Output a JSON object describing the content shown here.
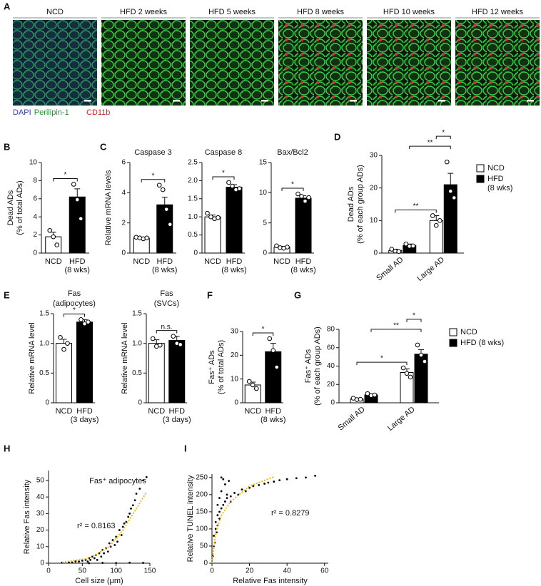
{
  "panel_a": {
    "letter": "A",
    "images": [
      "NCD",
      "HFD 2 weeks",
      "HFD 5 weeks",
      "HFD 8 weeks",
      "HFD 10 weeks",
      "HFD 12 weeks"
    ],
    "stain_labels": [
      {
        "text": "DAPI",
        "color": "#2b3aa8"
      },
      {
        "text": "Perilipin-1",
        "color": "#1e9a2e"
      },
      {
        "text": "CD11b",
        "color": "#d42020"
      }
    ]
  },
  "panel_letters": [
    "B",
    "C",
    "D",
    "E",
    "F",
    "G",
    "H",
    "I"
  ],
  "chart_data": [
    {
      "type": "bar",
      "ylabel": [
        "Dead ADs",
        "(% of total ADs)"
      ],
      "categories": [
        [
          "NCD"
        ],
        [
          "HFD",
          "(8 wks)"
        ]
      ],
      "values": [
        1.8,
        6.2
      ],
      "errors": [
        0.5,
        0.9
      ],
      "points": [
        [
          2.5,
          1.8,
          0.9
        ],
        [
          7.6,
          5.9,
          3.8
        ]
      ],
      "colors": [
        "#ffffff",
        "#000000"
      ],
      "ylim": [
        0,
        10
      ],
      "yticks": [
        0,
        2,
        4,
        6,
        8,
        10
      ],
      "brackets": [
        {
          "bars": [
            0,
            1
          ],
          "label": "*"
        }
      ]
    },
    {
      "type": "bar",
      "title": [
        "Caspase 3"
      ],
      "ylabel": [
        "Relative mRNA levels"
      ],
      "categories": [
        [
          "NCD"
        ],
        [
          "HFD",
          "(8 wks)"
        ]
      ],
      "values": [
        1.0,
        3.2
      ],
      "errors": [
        0.05,
        0.5
      ],
      "points": [
        [
          1.05,
          1.0,
          0.95,
          1.0
        ],
        [
          4.5,
          4.2,
          2.9,
          1.9
        ]
      ],
      "colors": [
        "#ffffff",
        "#000000"
      ],
      "ylim": [
        0,
        6
      ],
      "yticks": [
        0,
        2,
        4,
        6
      ],
      "brackets": [
        {
          "bars": [
            0,
            1
          ],
          "label": "*"
        }
      ]
    },
    {
      "type": "bar",
      "title": [
        "Caspase 8"
      ],
      "categories": [
        [
          "NCD"
        ],
        [
          "HFD",
          "(8 wks)"
        ]
      ],
      "values": [
        1.0,
        1.82
      ],
      "errors": [
        0.05,
        0.07
      ],
      "points": [
        [
          1.1,
          1.0,
          0.95,
          0.98
        ],
        [
          1.95,
          1.85,
          1.75,
          1.78
        ]
      ],
      "colors": [
        "#ffffff",
        "#000000"
      ],
      "ylim": [
        0,
        2.5
      ],
      "yticks": [
        0,
        0.5,
        {
          "value": 1,
          "label": "1.0"
        },
        1.5,
        {
          "value": 2,
          "label": "2.0"
        },
        2.5
      ],
      "brackets": [
        {
          "bars": [
            0,
            1
          ],
          "label": "*"
        }
      ]
    },
    {
      "type": "bar",
      "title": [
        "Bax/Bcl2"
      ],
      "categories": [
        [
          "NCD"
        ],
        [
          "HFD",
          "(8 wks)"
        ]
      ],
      "values": [
        1.0,
        9.1
      ],
      "errors": [
        0.1,
        0.4
      ],
      "points": [
        [
          1.2,
          0.9,
          0.8,
          1.0
        ],
        [
          9.8,
          9.4,
          8.6,
          9.2
        ]
      ],
      "colors": [
        "#ffffff",
        "#000000"
      ],
      "ylim": [
        0,
        15
      ],
      "yticks": [
        0,
        5,
        10,
        15
      ],
      "brackets": [
        {
          "bars": [
            0,
            1
          ],
          "label": "*"
        }
      ]
    },
    {
      "type": "bar",
      "ylabel": [
        "Dead ADs",
        "(% of each group ADs)"
      ],
      "categories": [
        "Small AD",
        "Large AD"
      ],
      "series": [
        {
          "name": [
            "NCD"
          ],
          "color": "#ffffff",
          "values": [
            0.8,
            10.0
          ],
          "errors": [
            0.4,
            1.5
          ],
          "points": [
            [
              1.2,
              0.6,
              0.5
            ],
            [
              11.5,
              8.5,
              10.0
            ]
          ]
        },
        {
          "name": [
            "HFD",
            "(8 wks)"
          ],
          "color": "#000000",
          "values": [
            2.3,
            21.0
          ],
          "errors": [
            0.5,
            3.5
          ],
          "points": [
            [
              2.8,
              2.1,
              2.2
            ],
            [
              28,
              19,
              17
            ]
          ]
        }
      ],
      "ylim": [
        0,
        30
      ],
      "yticks": [
        0,
        10,
        20,
        30
      ],
      "brackets": [
        {
          "bars": [
            [
              0,
              0
            ],
            [
              1,
              0
            ]
          ],
          "label": "**"
        },
        {
          "bars": [
            [
              0,
              1
            ],
            [
              1,
              1
            ]
          ],
          "label": "**"
        },
        {
          "bars": [
            [
              1,
              0
            ],
            [
              1,
              1
            ]
          ],
          "label": "*"
        }
      ]
    },
    {
      "type": "bar",
      "title": [
        "Fas",
        "(adipocytes)"
      ],
      "ylabel": [
        "Relative mRNA level"
      ],
      "categories": [
        [
          "NCD"
        ],
        [
          "HFD",
          "(3 days)"
        ]
      ],
      "values": [
        1.0,
        1.36
      ],
      "errors": [
        0.07,
        0.04
      ],
      "points": [
        [
          1.1,
          0.9,
          1.0
        ],
        [
          1.4,
          1.33,
          1.36
        ]
      ],
      "colors": [
        "#ffffff",
        "#000000"
      ],
      "ylim": [
        0,
        1.5
      ],
      "yticks": [
        0,
        0.5,
        {
          "value": 1,
          "label": "1.0"
        },
        1.5
      ],
      "brackets": [
        {
          "bars": [
            0,
            1
          ],
          "label": "*"
        }
      ]
    },
    {
      "type": "bar",
      "title": [
        "Fas",
        "(SVCs)"
      ],
      "ylabel": [
        "Relative mRNA level"
      ],
      "categories": [
        [
          "NCD"
        ],
        [
          "HFD",
          "(3 days)"
        ]
      ],
      "values": [
        1.0,
        1.05
      ],
      "errors": [
        0.06,
        0.07
      ],
      "points": [
        [
          1.08,
          0.95,
          0.97
        ],
        [
          1.12,
          1.0,
          0.98
        ]
      ],
      "colors": [
        "#ffffff",
        "#000000"
      ],
      "ylim": [
        0,
        1.5
      ],
      "yticks": [
        0,
        0.5,
        {
          "value": 1,
          "label": "1.0"
        },
        1.5
      ],
      "brackets": [
        {
          "bars": [
            0,
            1
          ],
          "label": "n.s."
        }
      ]
    },
    {
      "type": "bar",
      "ylabel": [
        "Fas⁺ ADs",
        "(% of total ADs)"
      ],
      "categories": [
        [
          "NCD"
        ],
        [
          "HFD",
          "(8 wks)"
        ]
      ],
      "values": [
        7.5,
        21.5
      ],
      "errors": [
        1.2,
        3.5
      ],
      "points": [
        [
          9,
          7.5,
          6
        ],
        [
          27,
          22,
          15
        ]
      ],
      "colors": [
        "#ffffff",
        "#000000"
      ],
      "ylim": [
        0,
        30
      ],
      "yticks": [
        0,
        10,
        20,
        30
      ],
      "brackets": [
        {
          "bars": [
            0,
            1
          ],
          "label": "*"
        }
      ]
    },
    {
      "type": "bar",
      "ylabel": [
        "Fas⁺ ADs",
        "(% of each group ADs)"
      ],
      "categories": [
        "Small AD",
        "Large AD"
      ],
      "series": [
        {
          "name": [
            "NCD"
          ],
          "color": "#ffffff",
          "values": [
            4,
            33
          ],
          "errors": [
            0.8,
            4
          ],
          "points": [
            [
              5,
              3.5,
              3.8
            ],
            [
              38,
              32,
              28
            ]
          ]
        },
        {
          "name": [
            "HFD (8 wks)"
          ],
          "color": "#000000",
          "values": [
            8.5,
            53
          ],
          "errors": [
            1,
            5
          ],
          "points": [
            [
              10,
              8,
              8.5
            ],
            [
              63,
              52,
              45
            ]
          ]
        }
      ],
      "ylim": [
        0,
        80
      ],
      "yticks": [
        0,
        20,
        40,
        60,
        80
      ],
      "brackets": [
        {
          "bars": [
            [
              0,
              0
            ],
            [
              1,
              0
            ]
          ],
          "label": "*"
        },
        {
          "bars": [
            [
              0,
              1
            ],
            [
              1,
              1
            ]
          ],
          "label": "**"
        },
        {
          "bars": [
            [
              1,
              0
            ],
            [
              1,
              1
            ]
          ],
          "label": "*"
        }
      ]
    },
    {
      "type": "scatter",
      "title": [
        "Fas⁺ adipocytes"
      ],
      "xlabel": "Cell size (μm)",
      "ylabel": [
        "Relative Fas intensity"
      ],
      "annotation": "r² = 0.8163",
      "color": "#000000",
      "x": [
        20,
        30,
        35,
        40,
        45,
        50,
        55,
        58,
        60,
        62,
        65,
        68,
        70,
        72,
        75,
        78,
        80,
        82,
        85,
        88,
        90,
        92,
        95,
        98,
        100,
        102,
        105,
        108,
        110,
        112,
        115,
        118,
        120,
        122,
        125,
        128,
        130,
        135,
        140,
        145,
        60,
        80,
        100,
        120,
        140
      ],
      "values": [
        0.3,
        0.5,
        0.4,
        1,
        1,
        1.5,
        2,
        1,
        3,
        2,
        4,
        3,
        5,
        2,
        6,
        4,
        8,
        6,
        9,
        7,
        12,
        10,
        14,
        11,
        16,
        13,
        20,
        17,
        22,
        24,
        25,
        28,
        30,
        33,
        35,
        38,
        42,
        45,
        50,
        52,
        0,
        0.2,
        0.1,
        0.3,
        0.2
      ],
      "fit": {
        "color": "#f0b400",
        "x": [
          20,
          60,
          90,
          110,
          130,
          145
        ],
        "values": [
          0.5,
          3,
          10,
          20,
          33,
          43
        ]
      },
      "xlim": [
        0,
        150
      ],
      "xticks": [
        0,
        50,
        100,
        150
      ],
      "ylim": [
        0,
        56
      ],
      "yticks": [
        0,
        10,
        20,
        30,
        40,
        50
      ]
    },
    {
      "type": "scatter",
      "xlabel": "Relative Fas intensity",
      "ylabel": [
        "Relative TUNEL intensity"
      ],
      "annotation": "r² = 0.8279",
      "color": "#000000",
      "x": [
        0.5,
        1,
        1,
        1.5,
        2,
        2,
        2.5,
        3,
        3,
        4,
        4,
        5,
        5,
        6,
        7,
        8,
        9,
        10,
        12,
        14,
        16,
        18,
        20,
        22,
        25,
        28,
        30,
        33,
        36,
        40,
        45,
        50,
        55,
        5,
        6,
        7,
        8,
        3,
        4,
        10
      ],
      "values": [
        20,
        50,
        80,
        60,
        100,
        120,
        90,
        140,
        110,
        150,
        130,
        160,
        210,
        170,
        180,
        190,
        240,
        195,
        205,
        200,
        215,
        210,
        220,
        225,
        228,
        232,
        235,
        238,
        242,
        245,
        248,
        250,
        255,
        250,
        245,
        230,
        200,
        170,
        190,
        180
      ],
      "fit": {
        "color": "#f0b400",
        "x": [
          0,
          2,
          5,
          10,
          20,
          33
        ],
        "values": [
          0,
          90,
          140,
          180,
          225,
          252
        ]
      },
      "xlim": [
        0,
        62
      ],
      "xticks": [
        0,
        20,
        40,
        60
      ],
      "ylim": [
        0,
        260
      ],
      "yticks": [
        0,
        50,
        100,
        150,
        200,
        250
      ]
    }
  ]
}
